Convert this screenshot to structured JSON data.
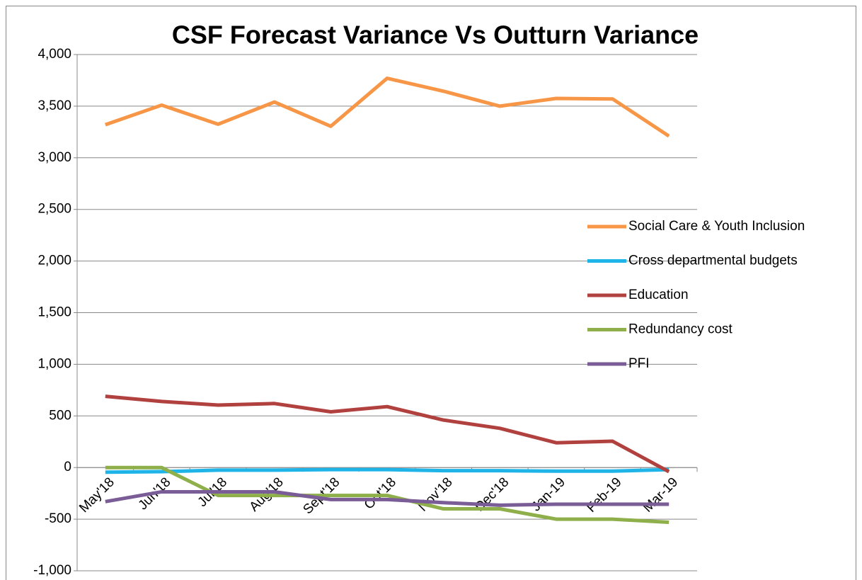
{
  "chart_data": {
    "type": "line",
    "title": "CSF Forecast Variance Vs Outturn Variance",
    "categories": [
      "May'18",
      "Jun'18",
      "Jul'18",
      "Aug'18",
      "Sept'18",
      "Oct'18",
      "Nov'18",
      "Dec'18",
      "Jan-19",
      "Feb-19",
      "Mar-19"
    ],
    "series": [
      {
        "name": "Social Care & Youth Inclusion",
        "color": "#f79646",
        "values": [
          3320,
          3510,
          3325,
          3540,
          3305,
          3770,
          3645,
          3500,
          3575,
          3570,
          3210
        ]
      },
      {
        "name": "Cross departmental budgets",
        "color": "#1fb4e8",
        "values": [
          -45,
          -40,
          -25,
          -25,
          -20,
          -20,
          -30,
          -30,
          -35,
          -35,
          -20
        ]
      },
      {
        "name": "Education",
        "color": "#b0413e",
        "values": [
          690,
          640,
          605,
          620,
          540,
          590,
          460,
          380,
          240,
          255,
          -40
        ]
      },
      {
        "name": "Redundancy cost",
        "color": "#8faf4a",
        "values": [
          0,
          0,
          -270,
          -270,
          -270,
          -270,
          -400,
          -400,
          -500,
          -500,
          -530
        ]
      },
      {
        "name": "PFI",
        "color": "#7a5c96",
        "values": [
          -330,
          -235,
          -235,
          -235,
          -310,
          -310,
          -340,
          -365,
          -355,
          -355,
          -355
        ]
      }
    ],
    "ylim": [
      -1000,
      4000
    ],
    "yticks": [
      {
        "value": -1000,
        "label": "-1,000"
      },
      {
        "value": -500,
        "label": "-500"
      },
      0,
      500,
      {
        "value": 1000,
        "label": "1,000"
      },
      {
        "value": 1500,
        "label": "1,500"
      },
      {
        "value": 2000,
        "label": "2,000"
      },
      {
        "value": 2500,
        "label": "2,500"
      },
      {
        "value": 3000,
        "label": "3,000"
      },
      {
        "value": 3500,
        "label": "3,500"
      },
      {
        "value": 4000,
        "label": "4,000"
      }
    ],
    "grid": true,
    "legend": "right"
  }
}
